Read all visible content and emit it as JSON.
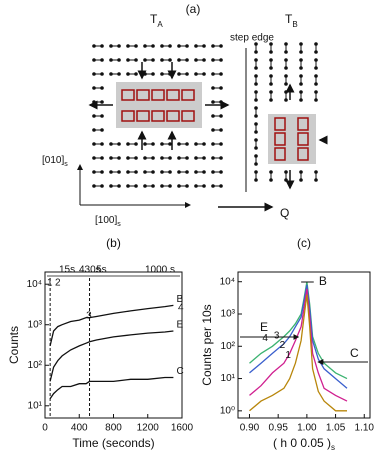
{
  "diagram": {
    "panel": "(a)",
    "terrace_a": {
      "label": "T",
      "subscript": "A"
    },
    "terrace_b": {
      "label": "T",
      "subscript": "B"
    },
    "step_edge": "step edge",
    "axis_vertical": {
      "label": "[010]",
      "subscript": "s"
    },
    "axis_horizontal": {
      "label": "[100]",
      "subscript": "s"
    },
    "q_label": "Q"
  },
  "chart_data": [
    {
      "type": "line",
      "panel": "(b)",
      "x_label": "Time (seconds)",
      "y_label": "Counts",
      "x": [
        60,
        100,
        150,
        200,
        300,
        400,
        480,
        520,
        600,
        800,
        1000,
        1200,
        1400,
        1500
      ],
      "series": [
        {
          "name": "B",
          "color": "#111111",
          "values": [
            300,
            700,
            900,
            1000,
            1200,
            1300,
            1500,
            1500,
            1600,
            1900,
            2200,
            2500,
            2800,
            3000
          ]
        },
        {
          "name": "E",
          "color": "#111111",
          "values": [
            40,
            90,
            130,
            170,
            240,
            300,
            350,
            380,
            420,
            500,
            560,
            620,
            660,
            700
          ]
        },
        {
          "name": "C",
          "color": "#111111",
          "values": [
            15,
            20,
            25,
            30,
            30,
            35,
            35,
            40,
            40,
            40,
            45,
            45,
            50,
            50
          ]
        }
      ],
      "xlim": [
        0,
        1600
      ],
      "xticks": [
        0,
        400,
        800,
        1200,
        1600
      ],
      "ylim": [
        5,
        20000
      ],
      "log_y": true,
      "yticks": [
        {
          "value": 10,
          "label": "10¹"
        },
        {
          "value": 100,
          "label": "10²"
        },
        {
          "value": 1000,
          "label": "10³"
        },
        {
          "value": 10000,
          "label": "10⁴"
        }
      ],
      "annotations": [
        "1",
        "2",
        "3",
        "4",
        "15s",
        "430s",
        "5s",
        "1000 s"
      ]
    },
    {
      "type": "line",
      "panel": "(c)",
      "x_label": {
        "label": "( h 0 0.05 )",
        "subscript": "s"
      },
      "y_label": "Counts per 10s",
      "x": [
        0.9,
        0.92,
        0.94,
        0.96,
        0.97,
        0.98,
        0.99,
        0.995,
        1.0,
        1.005,
        1.01,
        1.02,
        1.03,
        1.05,
        1.07
      ],
      "series": [
        {
          "name": "4",
          "color": "#3cb371",
          "values": [
            30,
            60,
            100,
            200,
            300,
            500,
            1000,
            3000,
            10000,
            2000,
            200,
            60,
            30,
            15,
            10
          ]
        },
        {
          "name": "3",
          "color": "#3a5fcd",
          "values": [
            15,
            30,
            60,
            120,
            200,
            400,
            800,
            2500,
            8000,
            1500,
            150,
            40,
            20,
            10,
            5
          ]
        },
        {
          "name": "2",
          "color": "#d02090",
          "values": [
            3,
            6,
            15,
            30,
            60,
            150,
            400,
            1500,
            6000,
            800,
            60,
            15,
            5,
            3,
            2
          ]
        },
        {
          "name": "1",
          "color": "#b8860b",
          "values": [
            1,
            2,
            3,
            5,
            10,
            30,
            150,
            800,
            4000,
            400,
            20,
            4,
            2,
            1,
            1
          ]
        }
      ],
      "xlim": [
        0.88,
        1.11
      ],
      "xticks": [
        {
          "value": 0.9,
          "label": "0.90"
        },
        {
          "value": 0.95,
          "label": "0.95"
        },
        {
          "value": 1.0,
          "label": "1.00"
        },
        {
          "value": 1.05,
          "label": "1.05"
        },
        {
          "value": 1.1,
          "label": "1.10"
        }
      ],
      "ylim": [
        0.6,
        20000
      ],
      "log_y": true,
      "yticks": [
        {
          "value": 1,
          "label": "10⁰"
        },
        {
          "value": 10,
          "label": "10¹"
        },
        {
          "value": 100,
          "label": "10²"
        },
        {
          "value": 1000,
          "label": "10³"
        },
        {
          "value": 10000,
          "label": "10⁴"
        }
      ],
      "annotations": [
        "E",
        "B",
        "C"
      ]
    }
  ]
}
